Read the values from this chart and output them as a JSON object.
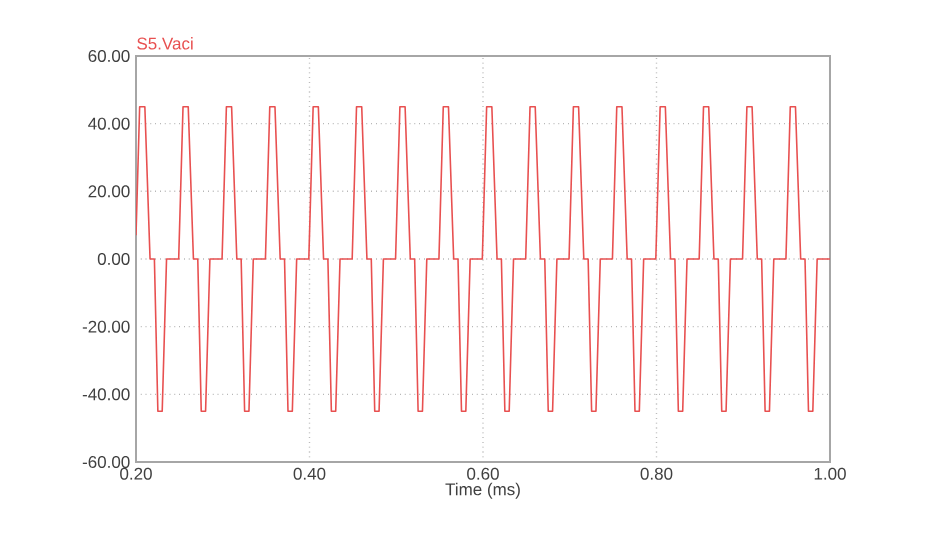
{
  "chart_data": {
    "type": "line",
    "xlabel": "Time  (ms)",
    "grid": true,
    "legend": "top left",
    "line_style": "solid",
    "marker": "none",
    "xlim": [
      0.2,
      1.0
    ],
    "xticks": [
      {
        "value": 0.2,
        "label": "0.20"
      },
      {
        "value": 0.4,
        "label": "0.40"
      },
      {
        "value": 0.6,
        "label": "0.60"
      },
      {
        "value": 0.8,
        "label": "0.80"
      },
      {
        "value": 1.0,
        "label": "1.00"
      }
    ],
    "ylim": [
      -60,
      60
    ],
    "yticks": [
      {
        "value": -60,
        "label": "-60.00"
      },
      {
        "value": -40,
        "label": "-40.00"
      },
      {
        "value": -20,
        "label": "-20.00"
      },
      {
        "value": 0,
        "label": "0.00"
      },
      {
        "value": 20,
        "label": "20.00"
      },
      {
        "value": 40,
        "label": "40.00"
      },
      {
        "value": 60,
        "label": "60.00"
      }
    ],
    "series": [
      {
        "name": "S5.Vaci",
        "color": "#e85050",
        "x": [
          0.2,
          0.2042,
          0.2102,
          0.2162,
          0.2212,
          0.2252,
          0.2302,
          0.2352,
          0.2492,
          0.2542,
          0.2602,
          0.2662,
          0.2712,
          0.2752,
          0.2802,
          0.2852,
          0.2992,
          0.3042,
          0.3102,
          0.3162,
          0.3212,
          0.3252,
          0.3302,
          0.3352,
          0.3492,
          0.3542,
          0.3602,
          0.3662,
          0.3712,
          0.3752,
          0.3802,
          0.3852,
          0.3992,
          0.4042,
          0.4102,
          0.4162,
          0.4212,
          0.4252,
          0.4302,
          0.4352,
          0.4492,
          0.4542,
          0.4602,
          0.4662,
          0.4712,
          0.4752,
          0.4802,
          0.4852,
          0.4992,
          0.5042,
          0.5102,
          0.5162,
          0.5212,
          0.5252,
          0.5302,
          0.5352,
          0.5492,
          0.5542,
          0.5602,
          0.5662,
          0.5712,
          0.5752,
          0.5802,
          0.5852,
          0.5992,
          0.6042,
          0.6102,
          0.6162,
          0.6212,
          0.6252,
          0.6302,
          0.6352,
          0.6492,
          0.6542,
          0.6602,
          0.6662,
          0.6712,
          0.6752,
          0.6802,
          0.6852,
          0.6992,
          0.7042,
          0.7102,
          0.7162,
          0.7212,
          0.7252,
          0.7302,
          0.7352,
          0.7492,
          0.7542,
          0.7602,
          0.7662,
          0.7712,
          0.7752,
          0.7802,
          0.7852,
          0.7992,
          0.8042,
          0.8102,
          0.8162,
          0.8212,
          0.8252,
          0.8302,
          0.8352,
          0.8492,
          0.8542,
          0.8602,
          0.8662,
          0.8712,
          0.8752,
          0.8802,
          0.8852,
          0.8992,
          0.9042,
          0.9102,
          0.9162,
          0.9212,
          0.9252,
          0.9302,
          0.9352,
          0.9492,
          0.9542,
          0.9602,
          0.9662,
          0.9712,
          0.9752,
          0.9802,
          0.9852,
          1.0
        ],
        "values": [
          7,
          45,
          45,
          0,
          0,
          -45,
          -45,
          0,
          0,
          45,
          45,
          0,
          0,
          -45,
          -45,
          0,
          0,
          45,
          45,
          0,
          0,
          -45,
          -45,
          0,
          0,
          45,
          45,
          0,
          0,
          -45,
          -45,
          0,
          0,
          45,
          45,
          0,
          0,
          -45,
          -45,
          0,
          0,
          45,
          45,
          0,
          0,
          -45,
          -45,
          0,
          0,
          45,
          45,
          0,
          0,
          -45,
          -45,
          0,
          0,
          45,
          45,
          0,
          0,
          -45,
          -45,
          0,
          0,
          45,
          45,
          0,
          0,
          -45,
          -45,
          0,
          0,
          45,
          45,
          0,
          0,
          -45,
          -45,
          0,
          0,
          45,
          45,
          0,
          0,
          -45,
          -45,
          0,
          0,
          45,
          45,
          0,
          0,
          -45,
          -45,
          0,
          0,
          45,
          45,
          0,
          0,
          -45,
          -45,
          0,
          0,
          45,
          45,
          0,
          0,
          -45,
          -45,
          0,
          0,
          45,
          45,
          0,
          0,
          -45,
          -45,
          0,
          0,
          45,
          45,
          0,
          0,
          -45,
          -45,
          0,
          0
        ]
      }
    ]
  }
}
